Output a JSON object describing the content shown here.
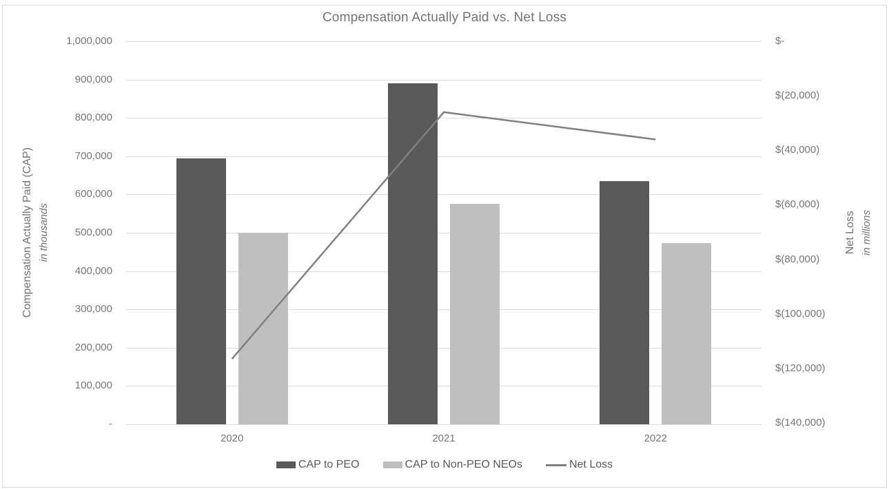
{
  "chart_data": {
    "type": "bar+line combo",
    "title": "Compensation Actually Paid vs. Net Loss",
    "categories": [
      "2020",
      "2021",
      "2022"
    ],
    "series": [
      {
        "name": "CAP to PEO",
        "type": "bar",
        "axis": "left",
        "color": "#595959",
        "values": [
          695000,
          890000,
          635000
        ]
      },
      {
        "name": "CAP to Non-PEO NEOs",
        "type": "bar",
        "axis": "left",
        "color": "#bfbfbf",
        "values": [
          500000,
          575000,
          473000
        ]
      },
      {
        "name": "Net Loss",
        "type": "line",
        "axis": "right",
        "color": "#808080",
        "values": [
          -116500,
          -26000,
          -36000
        ]
      }
    ],
    "left_axis": {
      "title": "Compensation Actually Paid (CAP)",
      "subtitle": "in thousands",
      "min": 0,
      "max": 1000000,
      "step": 100000,
      "tick_labels": [
        "1,000,000",
        "900,000",
        "800,000",
        "700,000",
        "600,000",
        "500,000",
        "400,000",
        "300,000",
        "200,000",
        "100,000",
        "-"
      ]
    },
    "right_axis": {
      "title": "Net Loss",
      "subtitle": "in millions",
      "min": -140000,
      "max": 0,
      "step": 20000,
      "tick_labels": [
        "$-",
        "$(20,000)",
        "$(40,000)",
        "$(60,000)",
        "$(80,000)",
        "$(100,000)",
        "$(120,000)",
        "$(140,000)"
      ]
    },
    "grid": true,
    "gridline_color": "#d9d9d9",
    "legend_position": "bottom",
    "legend_labels": [
      "CAP to PEO",
      "CAP to Non-PEO NEOs",
      "Net Loss"
    ]
  }
}
